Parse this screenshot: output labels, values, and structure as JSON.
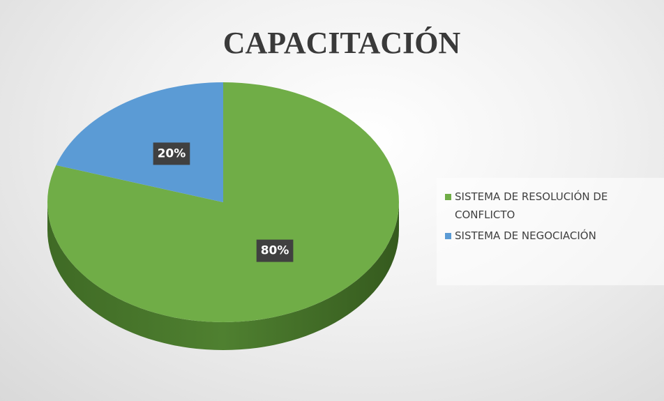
{
  "chart_data": {
    "type": "pie",
    "title": "CAPACITACIÓN",
    "categories": [
      "SISTEMA DE RESOLUCIÓN DE CONFLICTO",
      "SISTEMA DE NEGOCIACIÓN"
    ],
    "values": [
      80,
      20
    ],
    "value_labels": [
      "80%",
      "20%"
    ],
    "colors": [
      "#70ad47",
      "#5b9bd5"
    ],
    "legend": "right"
  }
}
